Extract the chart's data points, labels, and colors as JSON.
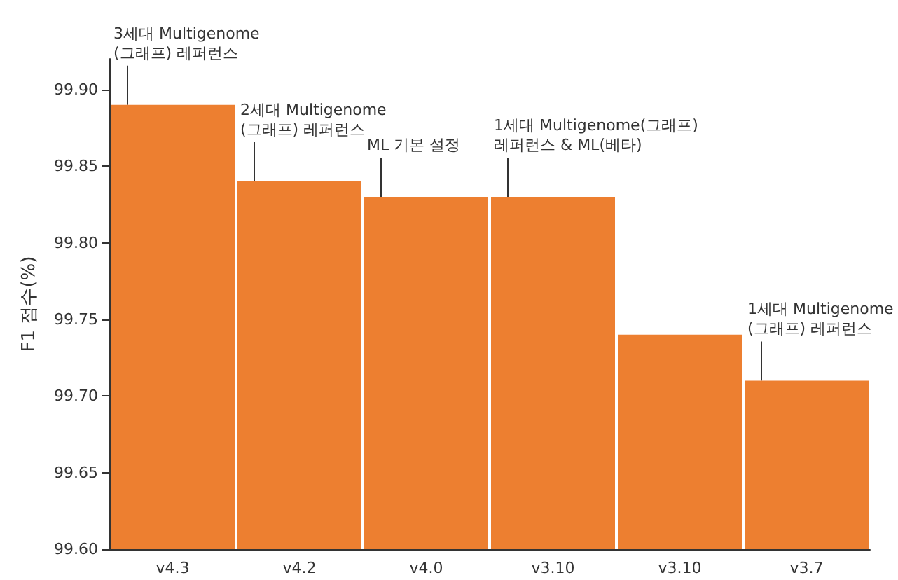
{
  "chart_data": {
    "type": "bar",
    "ylabel": "F1 점수(%)",
    "categories": [
      "v4.3",
      "v4.2",
      "v4.0",
      "v3.10",
      "v3.10",
      "v3.7"
    ],
    "values": [
      99.89,
      99.84,
      99.83,
      99.83,
      99.74,
      99.71
    ],
    "color": "#ed7f30",
    "ylim": [
      99.6,
      99.92
    ],
    "yticks": [
      {
        "value": 99.6,
        "label": "99.60"
      },
      {
        "value": 99.65,
        "label": "99.65"
      },
      {
        "value": 99.7,
        "label": "99.70"
      },
      {
        "value": 99.75,
        "label": "99.75"
      },
      {
        "value": 99.8,
        "label": "99.80"
      },
      {
        "value": 99.85,
        "label": "99.85"
      },
      {
        "value": 99.9,
        "label": "99.90"
      }
    ],
    "grid": false,
    "annotations": [
      {
        "text": "3세대 Multigenome\n(그래프) 레퍼런스",
        "x": "v4.3",
        "y": 99.89
      },
      {
        "text": "2세대 Multigenome\n(그래프) 레퍼런스",
        "x": "v4.2",
        "y": 99.84
      },
      {
        "text": "ML 기본 설정",
        "x": "v4.0",
        "y": 99.83
      },
      {
        "text": "1세대 Multigenome(그래프)\n레퍼런스 & ML(베타)",
        "x": "v3.10",
        "y": 99.83
      },
      {
        "text": "1세대 Multigenome\n(그래프) 레퍼런스",
        "x": "v3.7",
        "y": 99.71
      }
    ]
  }
}
